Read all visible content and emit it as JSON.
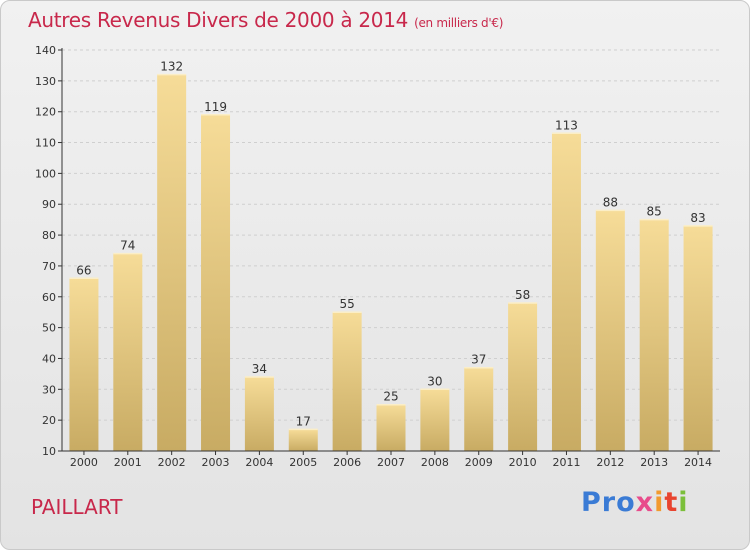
{
  "header": {
    "title": "Autres Revenus Divers de 2000 à 2014",
    "unit": "(en milliers d'€)"
  },
  "footer": {
    "city": "PAILLART",
    "logo": [
      "Pro",
      "x",
      "i",
      "t",
      "i"
    ]
  },
  "colors": {
    "bar_top": "#f6dc98",
    "bar_bottom": "#c8ab63",
    "title": "#c8284b",
    "grid": "#cfcfcf"
  },
  "chart_data": {
    "type": "bar",
    "title": "Autres Revenus Divers de 2000 à 2014",
    "subtitle": "(en milliers d'€)",
    "xlabel": "",
    "ylabel": "",
    "ylim": [
      10,
      140
    ],
    "yticks": [
      10,
      20,
      30,
      40,
      50,
      60,
      70,
      80,
      90,
      100,
      110,
      120,
      130,
      140
    ],
    "grid": true,
    "categories": [
      "2000",
      "2001",
      "2002",
      "2003",
      "2004",
      "2005",
      "2006",
      "2007",
      "2008",
      "2009",
      "2010",
      "2011",
      "2012",
      "2013",
      "2014"
    ],
    "values": [
      66,
      74,
      132,
      119,
      34,
      17,
      55,
      25,
      30,
      37,
      58,
      113,
      88,
      85,
      83
    ]
  }
}
